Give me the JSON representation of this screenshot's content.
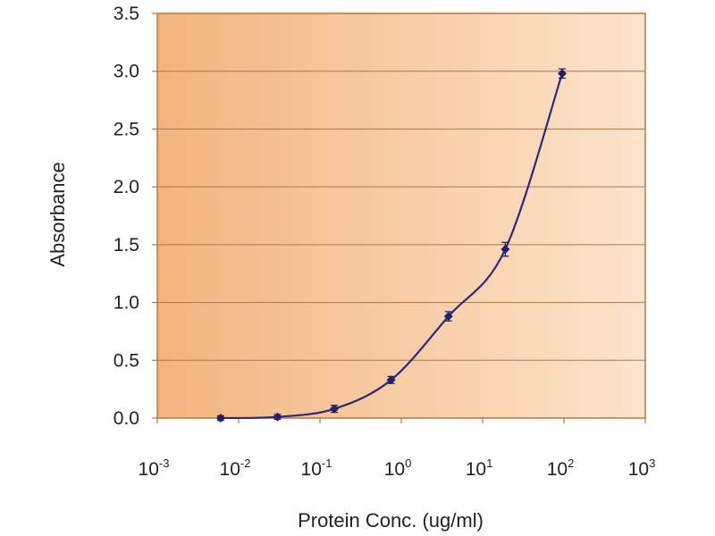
{
  "chart_data": {
    "type": "line",
    "title": "",
    "xlabel": "Protein Conc. (ug/ml)",
    "ylabel": "Absorbance",
    "x_scale": "log10",
    "xlim": [
      0.001,
      1000
    ],
    "ylim": [
      0,
      3.5
    ],
    "grid": {
      "horizontal": true,
      "vertical": false
    },
    "legend": "none",
    "x_ticks": [
      {
        "base": "10",
        "exp": "-3"
      },
      {
        "base": "10",
        "exp": "-2"
      },
      {
        "base": "10",
        "exp": "-1"
      },
      {
        "base": "10",
        "exp": "0"
      },
      {
        "base": "10",
        "exp": "1"
      },
      {
        "base": "10",
        "exp": "2"
      },
      {
        "base": "10",
        "exp": "3"
      }
    ],
    "y_ticks": [
      "0.0",
      "0.5",
      "1.0",
      "1.5",
      "2.0",
      "2.5",
      "3.0",
      "3.5"
    ],
    "series": [
      {
        "x": [
          0.006,
          0.03,
          0.15,
          0.75,
          3.8,
          19,
          95
        ],
        "y": [
          0.0,
          0.01,
          0.08,
          0.33,
          0.88,
          1.46,
          2.98
        ],
        "error": [
          0.02,
          0.02,
          0.03,
          0.03,
          0.04,
          0.06,
          0.04
        ]
      }
    ],
    "colors": {
      "line": "#2b2a78",
      "marker": "#1f2070",
      "plot_bg_left": "#f2b47e",
      "plot_bg_right": "#fde4cc",
      "grid": "#a8784c",
      "frame": "#b07a44"
    }
  }
}
